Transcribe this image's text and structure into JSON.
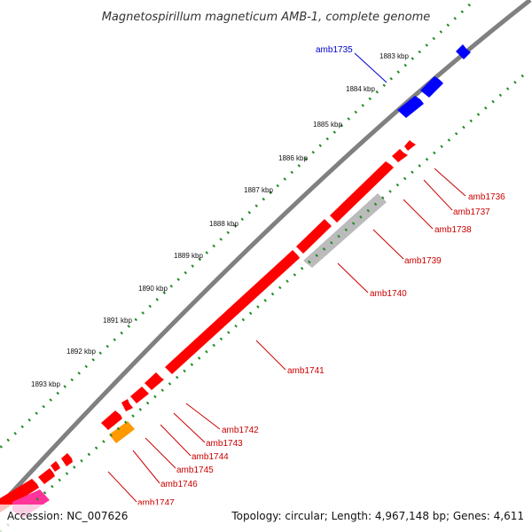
{
  "title": "Magnetospirillum magneticum AMB-1, complete genome",
  "ticks": [
    "1883 kbp",
    "1884 kbp",
    "1885 kbp",
    "1886 kbp",
    "1887 kbp",
    "1888 kbp",
    "1889 kbp",
    "1890 kbp",
    "1891 kbp",
    "1892 kbp",
    "1893 kbp"
  ],
  "genes": [
    {
      "label": "amb1735",
      "color": "#0000cc"
    },
    {
      "label": "amb1736",
      "color": "#cc0000"
    },
    {
      "label": "amb1737",
      "color": "#cc0000"
    },
    {
      "label": "amb1738",
      "color": "#cc0000"
    },
    {
      "label": "amb1739",
      "color": "#cc0000"
    },
    {
      "label": "amb1740",
      "color": "#cc0000"
    },
    {
      "label": "amb1741",
      "color": "#cc0000"
    },
    {
      "label": "amb1742",
      "color": "#cc0000"
    },
    {
      "label": "amb1743",
      "color": "#cc0000"
    },
    {
      "label": "amb1744",
      "color": "#cc0000"
    },
    {
      "label": "amb1745",
      "color": "#cc0000"
    },
    {
      "label": "amb1746",
      "color": "#cc0000"
    },
    {
      "label": "amb1747",
      "color": "#cc0000"
    }
  ],
  "colors": {
    "forward_gene": "#ff0000",
    "forward_blue": "#0000ff",
    "reverse_gray": "#bbbbbb",
    "reverse_orange": "#ff9900",
    "pink": "#ff3399",
    "backbone": "#808080",
    "gc_dots": "#228b22"
  },
  "footer": {
    "accession": "Accession: NC_007626",
    "topology": "Topology: circular; Length: 4,967,148 bp; Genes: 4,611"
  }
}
